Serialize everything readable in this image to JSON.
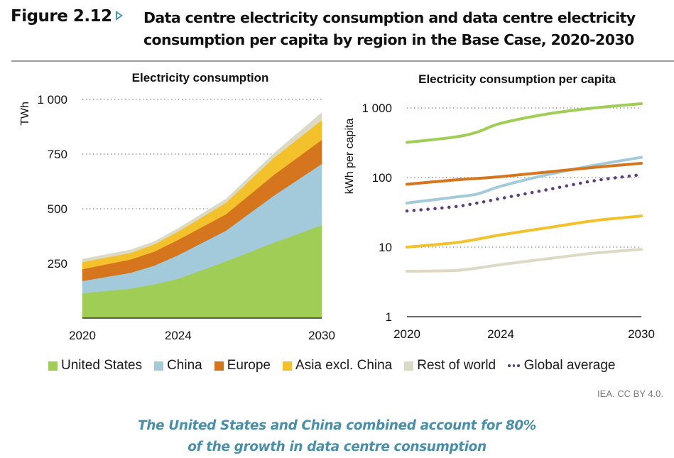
{
  "header": {
    "figure_label": "Figure 2.12",
    "figure_arrow_icon": "triangle-right-icon",
    "title_line1": "Data centre electricity consumption and data centre electricity",
    "title_line2": "consumption per capita by region in the Base Case, 2020-2030"
  },
  "legend": [
    {
      "label": "United States",
      "color": "#a0cd56",
      "style": "square"
    },
    {
      "label": "China",
      "color": "#a3cadb",
      "style": "square"
    },
    {
      "label": "Europe",
      "color": "#d5761f",
      "style": "square"
    },
    {
      "label": "Asia excl. China",
      "color": "#f2c12b",
      "style": "square"
    },
    {
      "label": "Rest of world",
      "color": "#dcd9c5",
      "style": "square"
    },
    {
      "label": "Global average",
      "color": "#5b3f7a",
      "style": "dotted"
    }
  ],
  "credit": "IEA. CC BY 4.0.",
  "caption_line1": "The United States and China combined account for 80%",
  "caption_line2": "of the growth in data centre consumption",
  "chart_data": [
    {
      "type": "area",
      "stacked": true,
      "title": "Electricity consumption",
      "xlabel": "",
      "ylabel": "TWh",
      "ylim": [
        0,
        1000
      ],
      "xlim": [
        2020,
        2030
      ],
      "x": [
        2020,
        2022,
        2023,
        2024,
        2026,
        2028,
        2030
      ],
      "x_ticks": [
        2020,
        2024,
        2030
      ],
      "y_ticks": [
        250,
        500,
        750,
        1000
      ],
      "y_tick_labels": [
        "250",
        "500",
        "750",
        "1 000"
      ],
      "gridlines": "horizontal dotted",
      "series": [
        {
          "name": "United States",
          "color": "#a0cd56",
          "values": [
            114,
            135,
            155,
            180,
            260,
            345,
            425
          ]
        },
        {
          "name": "China",
          "color": "#a3cadb",
          "values": [
            56,
            72,
            85,
            108,
            140,
            215,
            280
          ]
        },
        {
          "name": "Europe",
          "color": "#d5761f",
          "values": [
            54,
            61,
            64,
            70,
            75,
            95,
            110
          ]
        },
        {
          "name": "Asia excl. China",
          "color": "#f2c12b",
          "values": [
            32,
            30,
            33,
            38,
            52,
            78,
            90
          ]
        },
        {
          "name": "Rest of world",
          "color": "#dcd9c5",
          "values": [
            14,
            14,
            13,
            14,
            18,
            20,
            35
          ]
        }
      ]
    },
    {
      "type": "line",
      "scale": "log",
      "title": "Electricity consumption per capita",
      "xlabel": "",
      "ylabel": "kWh per capita",
      "ylim": [
        1,
        1000
      ],
      "xlim": [
        2020,
        2030
      ],
      "x": [
        2020,
        2022,
        2023,
        2024,
        2026,
        2028,
        2030
      ],
      "x_ticks": [
        2020,
        2024,
        2030
      ],
      "y_ticks": [
        1,
        10,
        100,
        1000
      ],
      "y_tick_labels": [
        "1",
        "10",
        "100",
        "1 000"
      ],
      "gridlines": "horizontal dotted",
      "series": [
        {
          "name": "United States",
          "color": "#a0cd56",
          "style": "solid",
          "values": [
            320,
            380,
            450,
            600,
            820,
            1000,
            1150
          ]
        },
        {
          "name": "China",
          "color": "#a3cadb",
          "style": "solid",
          "values": [
            43,
            52,
            58,
            75,
            110,
            150,
            195
          ]
        },
        {
          "name": "Europe",
          "color": "#d5761f",
          "style": "solid",
          "values": [
            80,
            92,
            97,
            103,
            120,
            140,
            160
          ]
        },
        {
          "name": "Asia excl. China",
          "color": "#f2c12b",
          "style": "solid",
          "values": [
            10,
            11.5,
            13,
            15,
            19,
            24,
            28
          ]
        },
        {
          "name": "Rest of world",
          "color": "#dcd9c5",
          "style": "solid",
          "values": [
            4.5,
            4.6,
            5,
            5.6,
            6.8,
            8.2,
            9.3
          ]
        },
        {
          "name": "Global average",
          "color": "#5b3f7a",
          "style": "dotted",
          "values": [
            33,
            38,
            43,
            50,
            67,
            90,
            110
          ]
        }
      ]
    }
  ]
}
